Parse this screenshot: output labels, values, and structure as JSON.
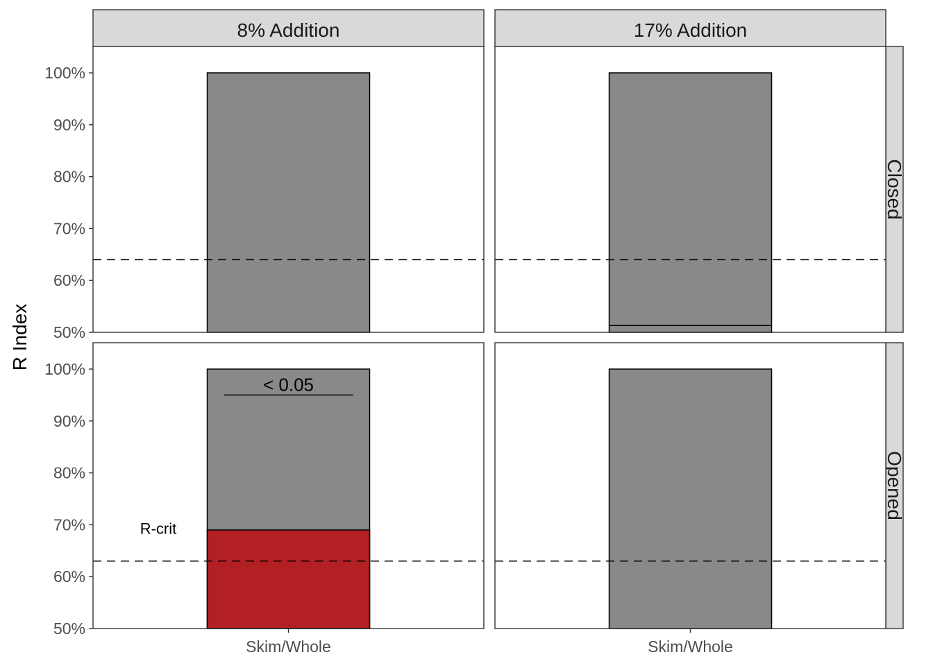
{
  "chart_data": {
    "type": "bar",
    "ylabel": "R Index",
    "xlabel": "",
    "ylim": [
      50,
      100
    ],
    "yticks": [
      50,
      60,
      70,
      80,
      90,
      100
    ],
    "ytick_suffix": "%",
    "legend": "none",
    "grid": false,
    "columns": [
      "8% Addition",
      "17% Addition"
    ],
    "rows": [
      "Closed",
      "Opened"
    ],
    "categories": [
      "Skim/Whole"
    ],
    "colors": {
      "bar": "#898989",
      "highlight": "#b22024",
      "strip": "#d9d9d9",
      "border": "#333333"
    },
    "panels": [
      {
        "col": "8% Addition",
        "row": "Closed",
        "category": "Skim/Whole",
        "bar_top": 100,
        "segment_value": null,
        "rcrit": 64,
        "significance": null,
        "rcrit_label": null
      },
      {
        "col": "17% Addition",
        "row": "Closed",
        "category": "Skim/Whole",
        "bar_top": 100,
        "segment_value": 51.3,
        "rcrit": 64,
        "significance": null,
        "rcrit_label": null
      },
      {
        "col": "8% Addition",
        "row": "Opened",
        "category": "Skim/Whole",
        "bar_top": 100,
        "segment_value": 69,
        "rcrit": 63,
        "significance": {
          "text": "< 0.05",
          "value": 95
        },
        "rcrit_label": "R-crit"
      },
      {
        "col": "17% Addition",
        "row": "Opened",
        "category": "Skim/Whole",
        "bar_top": 100,
        "segment_value": null,
        "rcrit": 63,
        "significance": null,
        "rcrit_label": null
      }
    ]
  }
}
